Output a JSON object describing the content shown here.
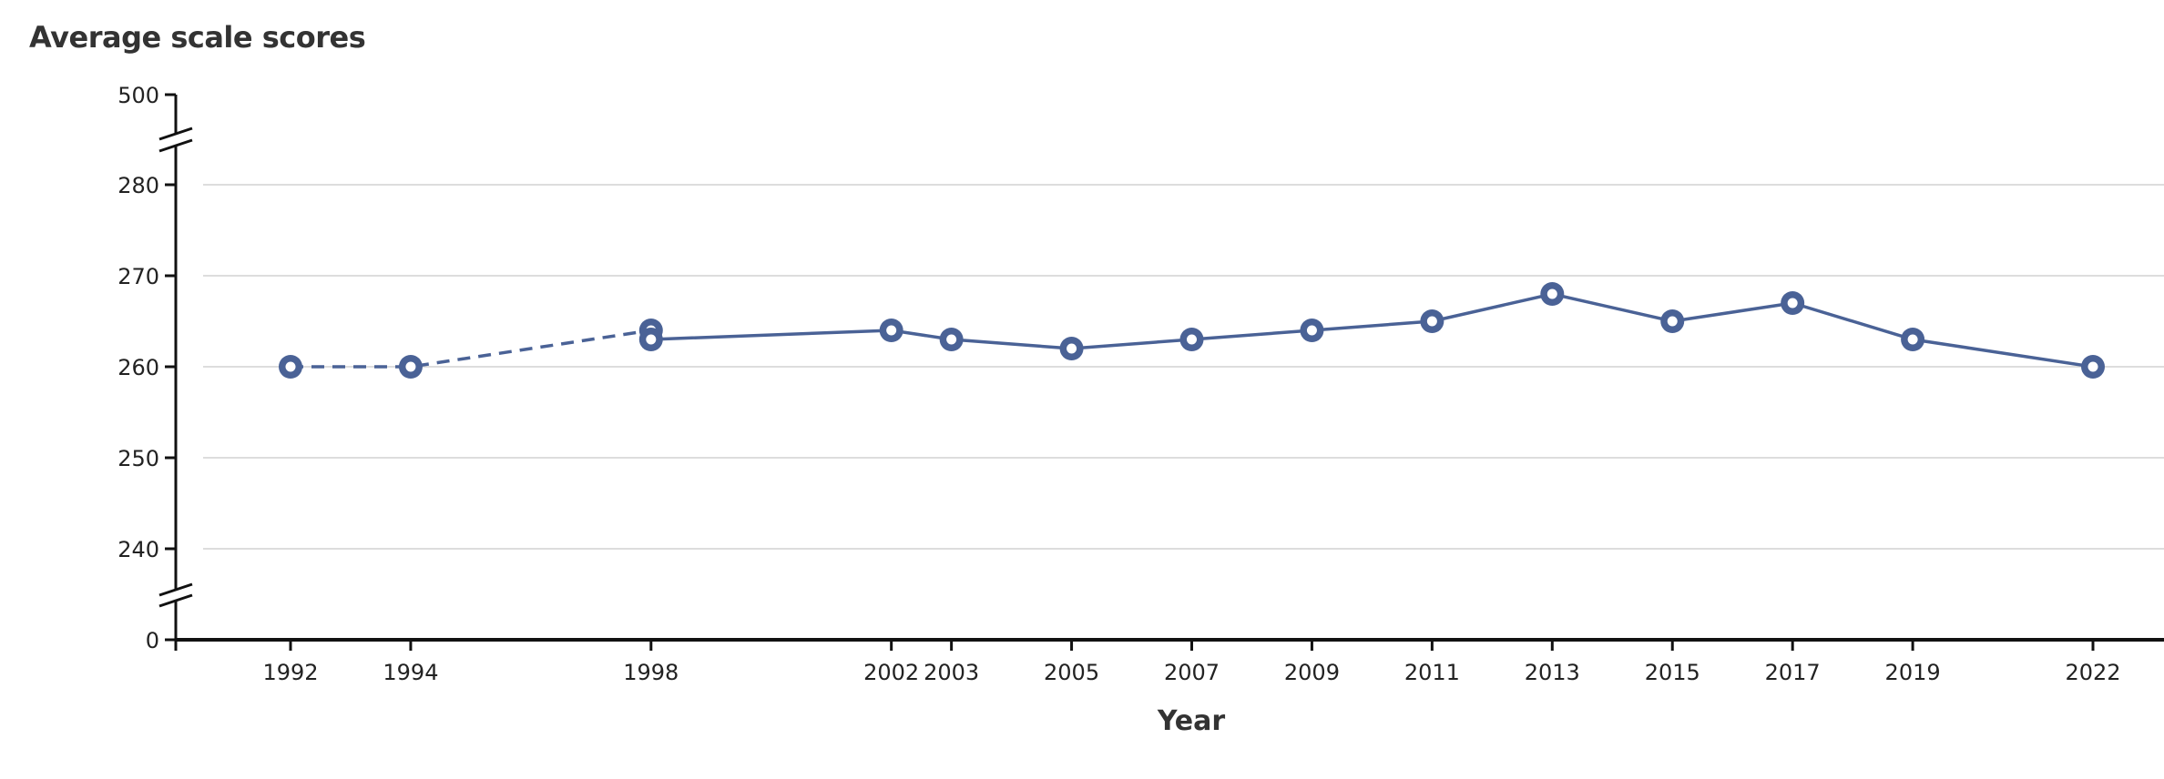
{
  "chart_data": {
    "type": "line",
    "title": "Average scale scores",
    "xlabel": "Year",
    "ylabel": "",
    "x_ticks": [
      "1992",
      "1994",
      "1998",
      "2002",
      "2003",
      "2005",
      "2007",
      "2009",
      "2011",
      "2013",
      "2015",
      "2017",
      "2019",
      "2022"
    ],
    "y_ticks": [
      "0",
      "240",
      "250",
      "260",
      "270",
      "280",
      "500"
    ],
    "ylim": [
      240,
      280
    ],
    "y_axis_breaks": [
      "0-240",
      "280-500"
    ],
    "grid": true,
    "colors": {
      "series": "#4a6296",
      "gridline": "#dddddd",
      "axis": "#111111"
    },
    "series": [
      {
        "segments": [
          {
            "style": "dashed",
            "points": [
              {
                "x": 1992,
                "y": 260
              },
              {
                "x": 1994,
                "y": 260
              },
              {
                "x": 1998,
                "y": 264
              }
            ]
          },
          {
            "style": "solid",
            "points": [
              {
                "x": 1998,
                "y": 263
              },
              {
                "x": 2002,
                "y": 264
              },
              {
                "x": 2003,
                "y": 263
              },
              {
                "x": 2005,
                "y": 262
              },
              {
                "x": 2007,
                "y": 263
              },
              {
                "x": 2009,
                "y": 264
              },
              {
                "x": 2011,
                "y": 265
              },
              {
                "x": 2013,
                "y": 268
              },
              {
                "x": 2015,
                "y": 265
              },
              {
                "x": 2017,
                "y": 267
              },
              {
                "x": 2019,
                "y": 263
              },
              {
                "x": 2022,
                "y": 260
              }
            ]
          }
        ]
      }
    ]
  }
}
